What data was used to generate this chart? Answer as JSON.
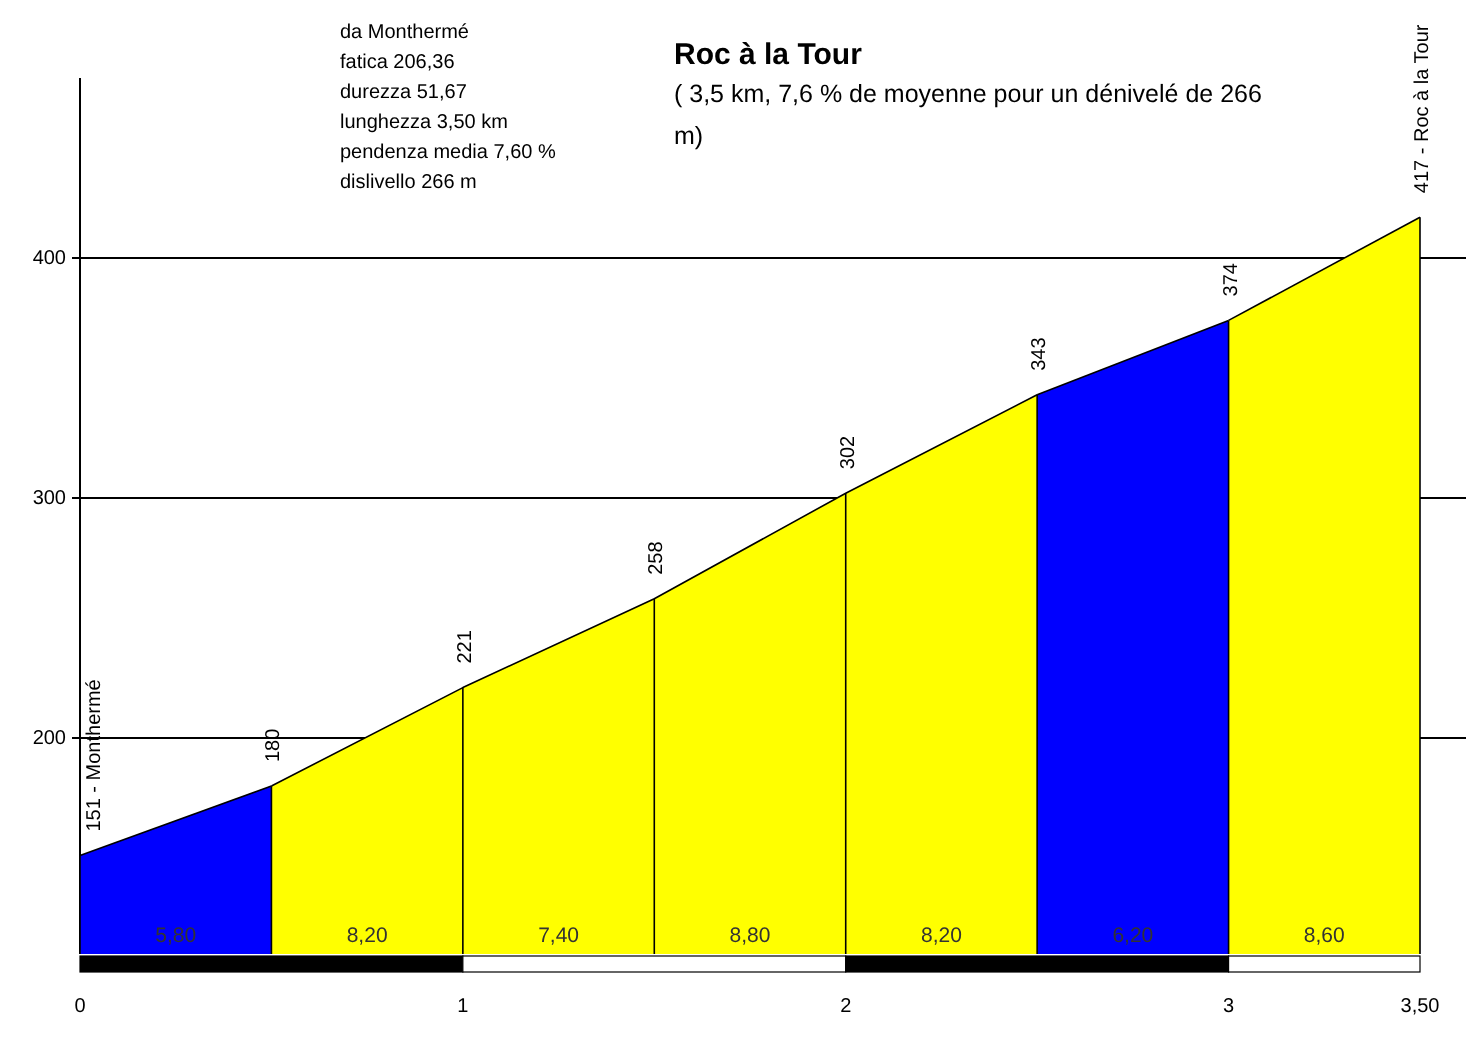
{
  "chart_data": {
    "type": "area",
    "title": "Roc à la Tour",
    "subtitle": "( 3,5 km, 7,6 % de moyenne pour un dénivelé de 266 m)",
    "series": [
      {
        "color": "#0000ff",
        "x": [
          0,
          0.5
        ],
        "values": [
          151,
          180
        ],
        "value_labels": [
          "151 - Monthermé",
          null
        ]
      },
      {
        "color": "#ffff00",
        "x": [
          0.5,
          1,
          1.5,
          2,
          2.5
        ],
        "values": [
          180,
          221,
          258,
          302,
          343
        ],
        "value_labels": [
          "180",
          "221",
          "258",
          "302",
          "343"
        ]
      },
      {
        "color": "#0000ff",
        "x": [
          2.5,
          3
        ],
        "values": [
          343,
          374
        ],
        "value_labels": [
          null,
          "374"
        ]
      },
      {
        "color": "#ffff00",
        "x": [
          3,
          3.5
        ],
        "values": [
          374,
          417
        ],
        "value_labels": [
          null,
          "417 - Roc à la Tour"
        ]
      }
    ],
    "xlim": [
      0,
      3.5
    ],
    "xticks": [
      0,
      1,
      2,
      3,
      {
        "value": 3.5,
        "label": "3,50"
      }
    ],
    "ylim": [
      110,
      475
    ],
    "yticks": [
      200,
      300,
      400
    ],
    "grid": "y",
    "annotations": [
      "da Monthermé",
      "fatica 206,36",
      "durezza 51,67",
      "lunghezza 3,50 km",
      "pendenza media 7,60 %",
      "dislivello 266 m",
      "5,80",
      "8,20",
      "7,40",
      "8,80",
      "8,20",
      "6,20",
      "8,60"
    ]
  }
}
